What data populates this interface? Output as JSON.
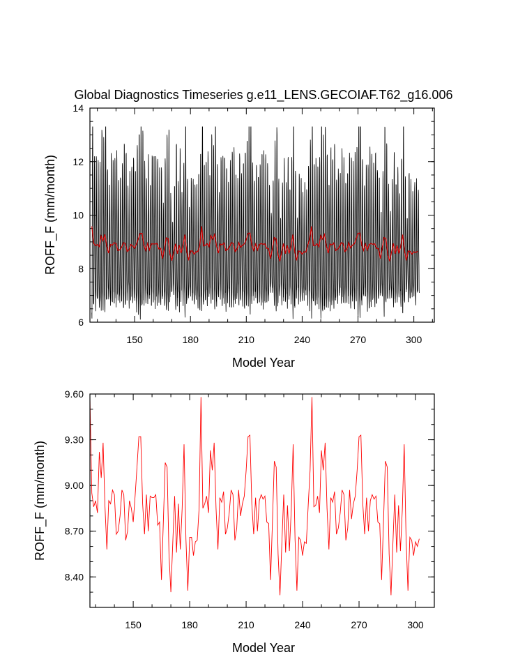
{
  "chart_data": [
    {
      "type": "line",
      "title": "Global Diagnostics Timeseries g.e11_LENS.GECOIAF.T62_g16.006",
      "xlabel": "Model Year",
      "ylabel": "ROFF_F (mm/month)",
      "xlim": [
        126,
        311
      ],
      "ylim": [
        6,
        14
      ],
      "xticks": [
        150,
        180,
        210,
        240,
        270,
        300
      ],
      "xtick_labels": [
        "150",
        "180",
        "210",
        "240",
        "270",
        "300"
      ],
      "yticks": [
        6,
        8,
        10,
        12,
        14
      ],
      "ytick_labels": [
        "6",
        "8",
        "10",
        "12",
        "14"
      ],
      "grid": false,
      "legend": "none",
      "series": [
        {
          "kind": "monthly",
          "color": "#000000",
          "x_start": 127,
          "months_per_year": 12,
          "monthly_climatology": [
            7.0,
            6.8,
            7.6,
            8.9,
            10.6,
            11.9,
            11.8,
            10.3,
            9.0,
            8.0,
            7.3,
            7.1
          ],
          "note_values": "monthly values = annual_mean + (monthly_climatology - 8.9) * seasonal_scale"
        },
        {
          "kind": "annual",
          "color": "#cc0000",
          "x_start": 127,
          "values": []
        }
      ]
    },
    {
      "type": "line",
      "title": "",
      "xlabel": "Model Year",
      "ylabel": "ROFF_F (mm/month)",
      "xlim": [
        127,
        310
      ],
      "ylim": [
        8.2,
        9.6
      ],
      "xticks": [
        150,
        180,
        210,
        240,
        270,
        300
      ],
      "xtick_labels": [
        "150",
        "180",
        "210",
        "240",
        "270",
        "300"
      ],
      "yticks": [
        8.4,
        8.7,
        9.0,
        9.3,
        9.6
      ],
      "ytick_labels": [
        "8.40",
        "8.70",
        "9.00",
        "9.30",
        "9.60"
      ],
      "grid": false,
      "legend": "none",
      "series": [
        {
          "color": "#ff0000",
          "x_start": 127,
          "values": [
            9.58,
            8.95,
            8.86,
            8.9,
            8.82,
            9.22,
            9.05,
            9.28,
            8.86,
            8.58,
            8.9,
            8.88,
            8.97,
            8.94,
            8.68,
            8.7,
            8.8,
            8.97,
            8.94,
            8.64,
            8.7,
            8.9,
            8.85,
            8.76,
            8.93,
            9.12,
            9.32,
            9.32,
            8.88,
            8.68,
            8.94,
            8.7,
            8.93,
            8.92,
            8.92,
            8.94,
            8.74,
            8.76,
            8.38,
            8.76,
            9.15,
            9.12,
            8.55,
            8.3,
            8.62,
            8.93,
            8.56,
            8.88,
            8.58,
            8.85,
            9.27,
            8.65,
            8.31,
            8.66,
            8.66,
            8.54,
            8.63,
            8.64,
            8.85,
            9.58,
            8.85,
            8.88,
            8.93,
            8.82,
            9.23,
            9.1,
            9.28,
            8.85,
            8.58,
            8.92,
            8.89,
            8.96,
            8.68,
            8.72,
            8.82,
            8.97,
            8.94,
            8.64,
            8.72,
            8.97,
            8.8,
            8.88,
            8.93,
            9.1,
            9.32,
            9.33,
            8.88,
            8.68,
            8.92,
            8.7,
            8.9,
            8.94,
            8.91,
            8.93,
            8.76,
            8.75,
            8.38,
            8.76,
            9.16,
            9.12,
            8.55,
            8.28,
            8.62,
            8.94,
            8.56,
            8.87,
            8.57,
            8.84,
            9.27,
            8.65,
            8.31,
            8.66,
            8.64,
            8.54,
            8.63,
            8.62,
            8.87,
            9.1,
            9.58,
            8.86,
            8.87,
            8.93,
            8.82,
            9.23,
            9.1,
            9.28,
            8.85,
            8.58,
            8.92,
            8.89,
            8.96,
            8.68,
            8.72,
            8.82,
            8.97,
            8.94,
            8.64,
            8.72,
            8.97,
            8.78,
            8.88,
            8.93,
            9.1,
            9.32,
            9.33,
            8.88,
            8.68,
            8.92,
            8.7,
            8.9,
            8.94,
            8.91,
            8.93,
            8.76,
            8.75,
            8.38,
            8.76,
            9.16,
            9.12,
            8.55,
            8.28,
            8.62,
            8.94,
            8.56,
            8.87,
            8.57,
            8.84,
            9.27,
            8.65,
            8.31,
            8.66,
            8.64,
            8.54,
            8.63,
            8.6,
            8.65
          ]
        }
      ]
    }
  ]
}
